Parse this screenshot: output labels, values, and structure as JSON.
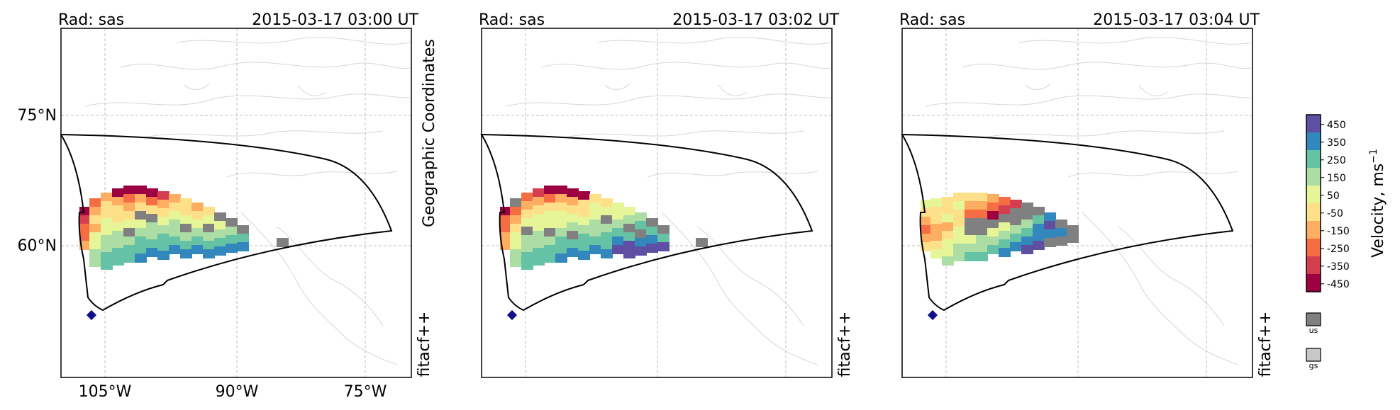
{
  "figure": {
    "left_panel_side_label": "Geographic Coordinates",
    "lat_labels": [
      "75°N",
      "60°N"
    ],
    "lon_labels": [
      "105°W",
      "90°W",
      "75°W"
    ]
  },
  "panels": [
    {
      "radar_label": "Rad: sas",
      "time_label": "2015-03-17 03:00 UT",
      "fit_label": "fitacf++"
    },
    {
      "radar_label": "Rad: sas",
      "time_label": "2015-03-17 03:02 UT",
      "fit_label": "fitacf++"
    },
    {
      "radar_label": "Rad: sas",
      "time_label": "2015-03-17 03:04 UT",
      "fit_label": "fitacf++"
    }
  ],
  "colorbar": {
    "label": "Velocity, ms",
    "label_superscript": "−1",
    "ticks": [
      "450",
      "350",
      "250",
      "150",
      "50",
      "-50",
      "-150",
      "-250",
      "-350",
      "-450"
    ],
    "colors": [
      "#5e4fa2",
      "#3288bd",
      "#66c2a5",
      "#abdda4",
      "#e6f598",
      "#fee08b",
      "#fdae61",
      "#f46d43",
      "#d53e4f",
      "#9e0142"
    ],
    "flag_legend": [
      {
        "label": "us",
        "color": "#808080"
      },
      {
        "label": "gs",
        "color": "#c8c8c8"
      }
    ]
  },
  "chart_data": {
    "type": "heatmap",
    "title": "",
    "xlabel": "",
    "ylabel": "",
    "projection": "geographic",
    "grid": true,
    "lat_ticks": [
      60,
      75
    ],
    "lon_ticks": [
      -105,
      -90,
      -75
    ],
    "value_range": [
      -500,
      500
    ],
    "radar_site": {
      "name": "sas",
      "lat_approx": 52.2,
      "lon_approx": -106.5
    },
    "panels": [
      {
        "time": "2015-03-17 03:00 UT",
        "dominant_velocity": "mixed -450 to 350 with ground/unknown scatter"
      },
      {
        "time": "2015-03-17 03:02 UT",
        "dominant_velocity": "mixed -450 to 450 with ground/unknown scatter"
      },
      {
        "time": "2015-03-17 03:04 UT",
        "dominant_velocity": "mixed -350 to 350 with ground/unknown scatter"
      }
    ]
  }
}
